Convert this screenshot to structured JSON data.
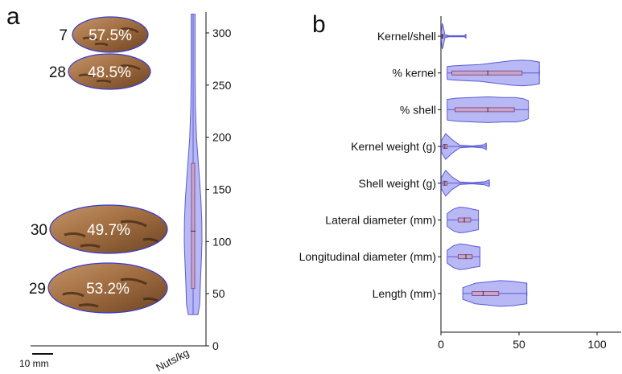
{
  "panels": {
    "a_label": "a",
    "b_label": "b"
  },
  "nuts": [
    {
      "id": "7",
      "percent": "57.5%"
    },
    {
      "id": "28",
      "percent": "48.5%"
    },
    {
      "id": "30",
      "percent": "49.7%"
    },
    {
      "id": "29",
      "percent": "53.2%"
    }
  ],
  "scale_bar": {
    "label": "10 mm"
  },
  "colors": {
    "violin_fill": "#b8b8f4",
    "violin_stroke": "#5a5ad8",
    "box_fill": "#c9a6c9",
    "nut_body": "#9c6a3e",
    "nut_outline": "#3a3ad0"
  },
  "chart_data": [
    {
      "type": "violin",
      "orientation": "vertical",
      "ylabel": "Nuts/kg",
      "ylim": [
        0,
        320
      ],
      "yticks": [
        0,
        50,
        100,
        150,
        200,
        250,
        300
      ],
      "series": [
        {
          "min": 30,
          "q1": 55,
          "median": 110,
          "q3": 175,
          "max": 318,
          "density": [
            [
              30,
              0.55
            ],
            [
              40,
              0.75
            ],
            [
              60,
              0.82
            ],
            [
              80,
              0.92
            ],
            [
              100,
              1.0
            ],
            [
              120,
              0.98
            ],
            [
              140,
              0.88
            ],
            [
              160,
              0.72
            ],
            [
              180,
              0.55
            ],
            [
              200,
              0.38
            ],
            [
              230,
              0.26
            ],
            [
              260,
              0.22
            ],
            [
              290,
              0.22
            ],
            [
              318,
              0.22
            ]
          ]
        }
      ]
    },
    {
      "type": "violin",
      "orientation": "horizontal",
      "xlim": [
        0,
        115
      ],
      "xticks": [
        0,
        50,
        100
      ],
      "categories": [
        "Kernel/shell",
        "% kernel",
        "% shell",
        "Kernel weight (g)",
        "Shell weight (g)",
        "Lateral diameter (mm)",
        "Longitudinal diameter (mm)",
        "Length (mm)"
      ],
      "series": [
        {
          "category": "Kernel/shell",
          "min": 0.2,
          "q1": 0.4,
          "median": 0.8,
          "q3": 1.2,
          "max": 16,
          "density": [
            [
              0.2,
              0.25
            ],
            [
              0.8,
              1.0
            ],
            [
              1.5,
              0.75
            ],
            [
              2.5,
              0.12
            ],
            [
              5,
              0.05
            ],
            [
              10,
              0.04
            ],
            [
              15,
              0.05
            ],
            [
              16,
              0.12
            ]
          ]
        },
        {
          "category": "% kernel",
          "min": 4,
          "q1": 7,
          "median": 30,
          "q3": 52,
          "max": 63,
          "density": [
            [
              4,
              0.5
            ],
            [
              8,
              0.55
            ],
            [
              15,
              0.6
            ],
            [
              25,
              0.65
            ],
            [
              35,
              0.8
            ],
            [
              45,
              0.95
            ],
            [
              52,
              1.0
            ],
            [
              58,
              0.95
            ],
            [
              63,
              0.85
            ]
          ]
        },
        {
          "category": "% shell",
          "min": 4,
          "q1": 9,
          "median": 30,
          "q3": 47,
          "max": 56,
          "density": [
            [
              4,
              0.8
            ],
            [
              10,
              0.9
            ],
            [
              20,
              0.95
            ],
            [
              30,
              1.0
            ],
            [
              40,
              0.95
            ],
            [
              48,
              0.95
            ],
            [
              53,
              0.85
            ],
            [
              56,
              0.7
            ]
          ]
        },
        {
          "category": "Kernel weight (g)",
          "min": 0.3,
          "q1": 1.5,
          "median": 2.5,
          "q3": 4,
          "max": 29,
          "density": [
            [
              0.3,
              0.45
            ],
            [
              3,
              1.0
            ],
            [
              7,
              0.55
            ],
            [
              12,
              0.1
            ],
            [
              20,
              0.04
            ],
            [
              27,
              0.12
            ],
            [
              29,
              0.25
            ]
          ]
        },
        {
          "category": "Shell weight (g)",
          "min": 0.3,
          "q1": 1.5,
          "median": 2.5,
          "q3": 4,
          "max": 31,
          "density": [
            [
              0.3,
              0.45
            ],
            [
              3,
              1.0
            ],
            [
              7,
              0.5
            ],
            [
              12,
              0.1
            ],
            [
              20,
              0.04
            ],
            [
              28,
              0.12
            ],
            [
              31,
              0.25
            ]
          ]
        },
        {
          "category": "Lateral diameter (mm)",
          "min": 4,
          "q1": 11,
          "median": 15,
          "q3": 19,
          "max": 24,
          "density": [
            [
              4,
              0.5
            ],
            [
              8,
              0.85
            ],
            [
              12,
              1.0
            ],
            [
              16,
              0.95
            ],
            [
              20,
              0.85
            ],
            [
              24,
              0.75
            ]
          ]
        },
        {
          "category": "Longitudinal diameter (mm)",
          "min": 4,
          "q1": 11,
          "median": 16,
          "q3": 20,
          "max": 25,
          "density": [
            [
              4,
              0.5
            ],
            [
              8,
              0.85
            ],
            [
              12,
              1.0
            ],
            [
              16,
              0.95
            ],
            [
              20,
              0.85
            ],
            [
              25,
              0.75
            ]
          ]
        },
        {
          "category": "Length (mm)",
          "min": 14,
          "q1": 20,
          "median": 27,
          "q3": 37,
          "max": 55,
          "density": [
            [
              14,
              0.45
            ],
            [
              22,
              0.8
            ],
            [
              30,
              0.9
            ],
            [
              38,
              1.0
            ],
            [
              46,
              0.95
            ],
            [
              55,
              0.8
            ]
          ]
        }
      ]
    }
  ]
}
